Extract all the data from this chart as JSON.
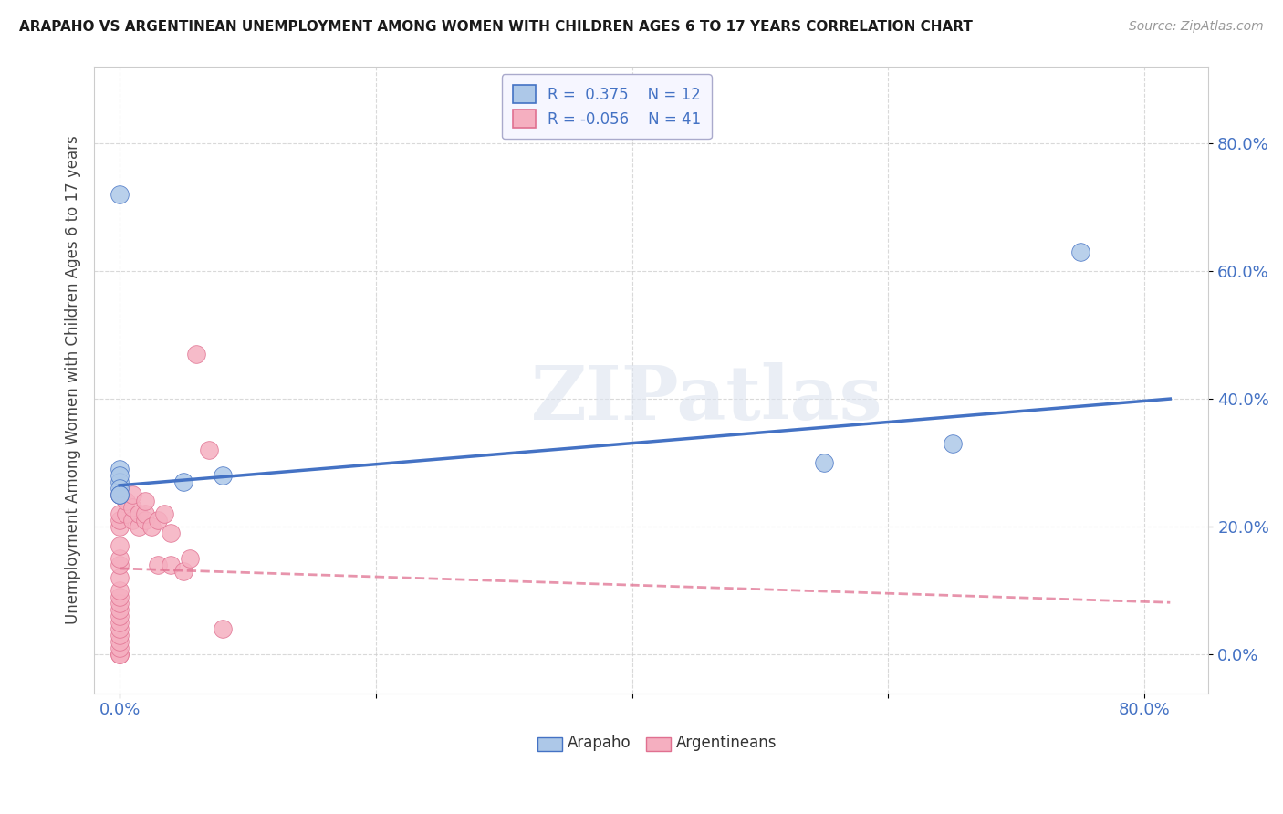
{
  "title": "ARAPAHO VS ARGENTINEAN UNEMPLOYMENT AMONG WOMEN WITH CHILDREN AGES 6 TO 17 YEARS CORRELATION CHART",
  "source": "Source: ZipAtlas.com",
  "ylabel": "Unemployment Among Women with Children Ages 6 to 17 years",
  "xlim": [
    -0.02,
    0.85
  ],
  "ylim": [
    -0.06,
    0.92
  ],
  "arapaho_color": "#adc8e8",
  "argentinean_color": "#f5afc0",
  "arapaho_line_color": "#4472c4",
  "argentinean_line_color": "#e07090",
  "arapaho_r": 0.375,
  "arapaho_n": 12,
  "argentinean_r": -0.056,
  "argentinean_n": 41,
  "arapaho_points_x": [
    0.0,
    0.0,
    0.0,
    0.0,
    0.0,
    0.0,
    0.0,
    0.05,
    0.08,
    0.55,
    0.65,
    0.75
  ],
  "arapaho_points_y": [
    0.72,
    0.29,
    0.27,
    0.28,
    0.26,
    0.25,
    0.25,
    0.27,
    0.28,
    0.3,
    0.33,
    0.63
  ],
  "argentinean_points_x": [
    0.0,
    0.0,
    0.0,
    0.0,
    0.0,
    0.0,
    0.0,
    0.0,
    0.0,
    0.0,
    0.0,
    0.0,
    0.0,
    0.0,
    0.0,
    0.0,
    0.0,
    0.0,
    0.0,
    0.0,
    0.005,
    0.005,
    0.01,
    0.01,
    0.01,
    0.015,
    0.015,
    0.02,
    0.02,
    0.02,
    0.025,
    0.03,
    0.03,
    0.035,
    0.04,
    0.04,
    0.05,
    0.055,
    0.06,
    0.07,
    0.08
  ],
  "argentinean_points_y": [
    0.0,
    0.0,
    0.01,
    0.02,
    0.03,
    0.04,
    0.05,
    0.06,
    0.07,
    0.08,
    0.09,
    0.1,
    0.12,
    0.14,
    0.15,
    0.17,
    0.2,
    0.21,
    0.22,
    0.25,
    0.22,
    0.24,
    0.21,
    0.23,
    0.25,
    0.2,
    0.22,
    0.21,
    0.22,
    0.24,
    0.2,
    0.14,
    0.21,
    0.22,
    0.14,
    0.19,
    0.13,
    0.15,
    0.47,
    0.32,
    0.04
  ],
  "watermark_text": "ZIPatlas",
  "background_color": "#ffffff",
  "grid_color": "#d0d0d0",
  "ytick_vals": [
    0.0,
    0.2,
    0.4,
    0.6,
    0.8
  ],
  "xtick_edge_vals": [
    0.0,
    0.8
  ],
  "arapaho_line_x": [
    0.0,
    0.82
  ],
  "arapaho_line_intercept": 0.265,
  "arapaho_line_slope": 0.165,
  "arg_line_x": [
    0.0,
    0.82
  ],
  "arg_line_intercept": 0.135,
  "arg_line_slope": -0.065
}
